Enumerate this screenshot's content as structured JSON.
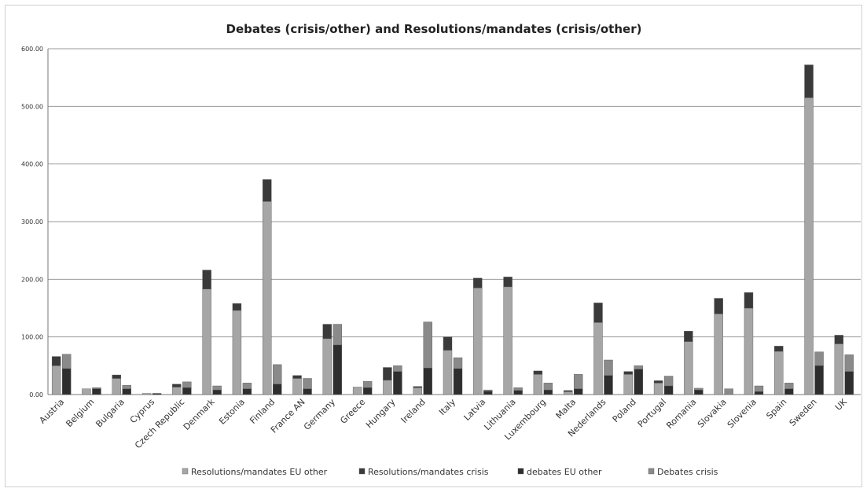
{
  "chart_data": {
    "type": "bar",
    "stacked": true,
    "title": "Debates (crisis/other) and Resolutions/mandates (crisis/other)",
    "xlabel": "",
    "ylabel": "",
    "ylim": [
      0,
      600
    ],
    "yticks": [
      "0.00",
      "100.00",
      "200.00",
      "300.00",
      "400.00",
      "500.00",
      "600.00"
    ],
    "grid": true,
    "legend_position": "bottom",
    "categories": [
      "Austria",
      "Belgium",
      "Bulgaria",
      "Cyprus",
      "Czech Republic",
      "Denmark",
      "Estonia",
      "Finland",
      "France AN",
      "Germany",
      "Greece",
      "Hungary",
      "Ireland",
      "Italy",
      "Latvia",
      "Lithuania",
      "Luxembourg",
      "Malta",
      "Nederlands",
      "Poland",
      "Portugal",
      "Romania",
      "Slovakia",
      "Slovenia",
      "Spain",
      "Sweden",
      "UK"
    ],
    "groups": [
      {
        "name": "Resolutions/mandates",
        "series": [
          {
            "name": "Resolutions/mandates EU other",
            "color": "#a6a6a6",
            "values": [
              50,
              10,
              28,
              2,
              13,
              183,
              146,
              335,
              28,
              97,
              13,
              25,
              12,
              77,
              185,
              187,
              35,
              5,
              125,
              35,
              20,
              92,
              140,
              150,
              75,
              515,
              88
            ]
          },
          {
            "name": "Resolutions/mandates crisis",
            "color": "#3a3a3a",
            "values": [
              16,
              0,
              6,
              0,
              5,
              33,
              12,
              38,
              5,
              25,
              0,
              22,
              2,
              23,
              17,
              17,
              6,
              2,
              34,
              5,
              4,
              18,
              27,
              27,
              9,
              57,
              15
            ]
          }
        ]
      },
      {
        "name": "Debates",
        "series": [
          {
            "name": "debates EU other",
            "color": "#2e2e2e",
            "values": [
              45,
              10,
              10,
              2,
              12,
              8,
              10,
              18,
              10,
              86,
              12,
              40,
              46,
              45,
              6,
              7,
              8,
              10,
              33,
              44,
              15,
              8,
              0,
              5,
              10,
              50,
              40
            ]
          },
          {
            "name": "Debates crisis",
            "color": "#8a8a8a",
            "values": [
              25,
              2,
              6,
              0,
              10,
              7,
              10,
              34,
              18,
              36,
              11,
              10,
              80,
              19,
              2,
              5,
              12,
              25,
              27,
              6,
              17,
              3,
              10,
              10,
              10,
              24,
              29
            ]
          }
        ]
      }
    ]
  }
}
